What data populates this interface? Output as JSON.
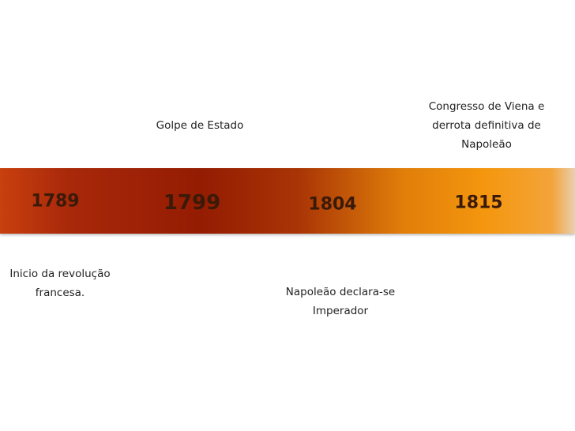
{
  "events": [
    {
      "year": "1789",
      "lines": [
        "Inicio da revolução",
        "francesa."
      ]
    },
    {
      "year": "1799",
      "lines": [
        "Golpe de Estado"
      ]
    },
    {
      "year": "1804",
      "lines": [
        "Napoleão declara-se",
        "Imperador"
      ]
    },
    {
      "year": "1815",
      "lines": [
        "Congresso de Viena e",
        "derrota definitiva de",
        "Napoleão"
      ]
    }
  ]
}
